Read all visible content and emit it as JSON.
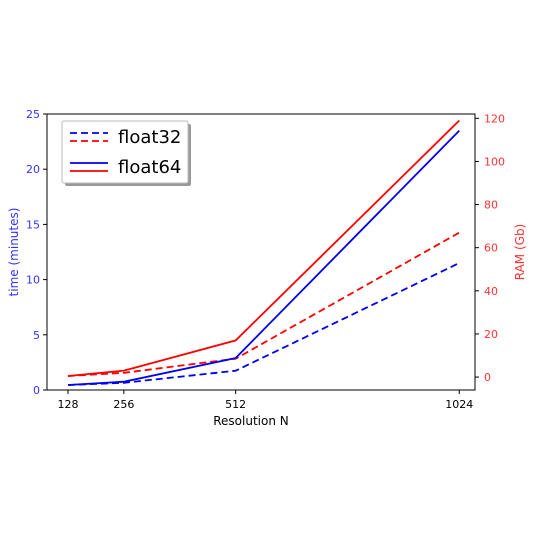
{
  "chart_data": {
    "type": "line",
    "x": [
      128,
      256,
      512,
      1024
    ],
    "x_tick_labels": [
      "128",
      "256",
      "512",
      "1024"
    ],
    "xlabel": "Resolution N",
    "xlim": [
      80,
      1060
    ],
    "y_left": {
      "label": "time (minutes)",
      "color": "#3333ff",
      "lim": [
        0,
        25
      ],
      "ticks": [
        0,
        5,
        10,
        15,
        20,
        25
      ]
    },
    "y_right": {
      "label": "RAM (Gb)",
      "color": "#ff3333",
      "lim": [
        -6,
        122
      ],
      "ticks": [
        0,
        20,
        40,
        60,
        80,
        100,
        120
      ]
    },
    "series": [
      {
        "legend": "float32",
        "metric": "time",
        "axis": "left",
        "color": "#0000ee",
        "dash": true,
        "values": [
          0.45,
          0.65,
          1.75,
          11.5
        ]
      },
      {
        "legend": "float32",
        "metric": "RAM",
        "axis": "right",
        "color": "#ff0000",
        "dash": true,
        "values": [
          0.5,
          2.0,
          8.5,
          67
        ]
      },
      {
        "legend": "float64",
        "metric": "time",
        "axis": "left",
        "color": "#0000ee",
        "dash": false,
        "values": [
          0.45,
          0.75,
          2.9,
          23.5
        ]
      },
      {
        "legend": "float64",
        "metric": "RAM",
        "axis": "right",
        "color": "#ff0000",
        "dash": false,
        "values": [
          0.5,
          3.0,
          17.0,
          119
        ]
      }
    ],
    "legend": {
      "placement": "top-left",
      "entries": [
        "float32",
        "float64"
      ]
    },
    "grid": false
  }
}
